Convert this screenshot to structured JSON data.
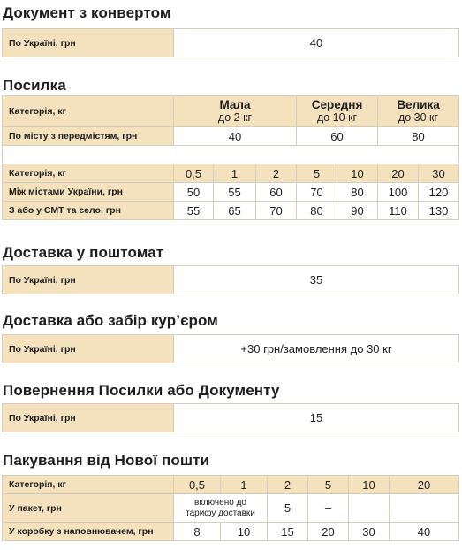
{
  "envelope": {
    "title": "Документ з конвертом",
    "row_label": "По Україні, грн",
    "value": "40"
  },
  "parcel": {
    "title": "Посилка",
    "size_header_label": "Категорія, кг",
    "sizes": [
      {
        "name": "Мала",
        "limit": "до 2 кг"
      },
      {
        "name": "Середня",
        "limit": "до 10 кг"
      },
      {
        "name": "Велика",
        "limit": "до 30 кг"
      }
    ],
    "city_row_label": "По місту з передмістям, грн",
    "city_values": [
      "40",
      "60",
      "80"
    ],
    "weight_header_label": "Категорія, кг",
    "weights": [
      "0,5",
      "1",
      "2",
      "5",
      "10",
      "20",
      "30"
    ],
    "rows": [
      {
        "label": "Між містами України, грн",
        "values": [
          "50",
          "55",
          "60",
          "70",
          "80",
          "100",
          "120"
        ]
      },
      {
        "label": "З або у СМТ та село, грн",
        "values": [
          "55",
          "65",
          "70",
          "80",
          "90",
          "110",
          "130"
        ]
      }
    ]
  },
  "postomat": {
    "title": "Доставка у поштомат",
    "row_label": "По Україні, грн",
    "value": "35"
  },
  "courier": {
    "title": "Доставка або забір кур’єром",
    "row_label": "По Україні, грн",
    "value": "+30 грн/замовлення до 30 кг"
  },
  "return": {
    "title": "Повернення Посилки або Документу",
    "row_label": "По Україні, грн",
    "value": "15"
  },
  "packaging": {
    "title": "Пакування від Нової пошти",
    "header_label": "Категорія, кг",
    "weights": [
      "0,5",
      "1",
      "2",
      "5",
      "10",
      "20"
    ],
    "bag_label": "У пакет, грн",
    "bag_included": "включено до тарифу доставки",
    "bag_values": [
      "5",
      "–",
      "",
      ""
    ],
    "box_label": "У коробку з наповнювачем, грн",
    "box_values": [
      "8",
      "10",
      "15",
      "20",
      "30",
      "40"
    ]
  },
  "colors": {
    "label_bg": "#f4e2be",
    "border": "#d4cdbd"
  }
}
